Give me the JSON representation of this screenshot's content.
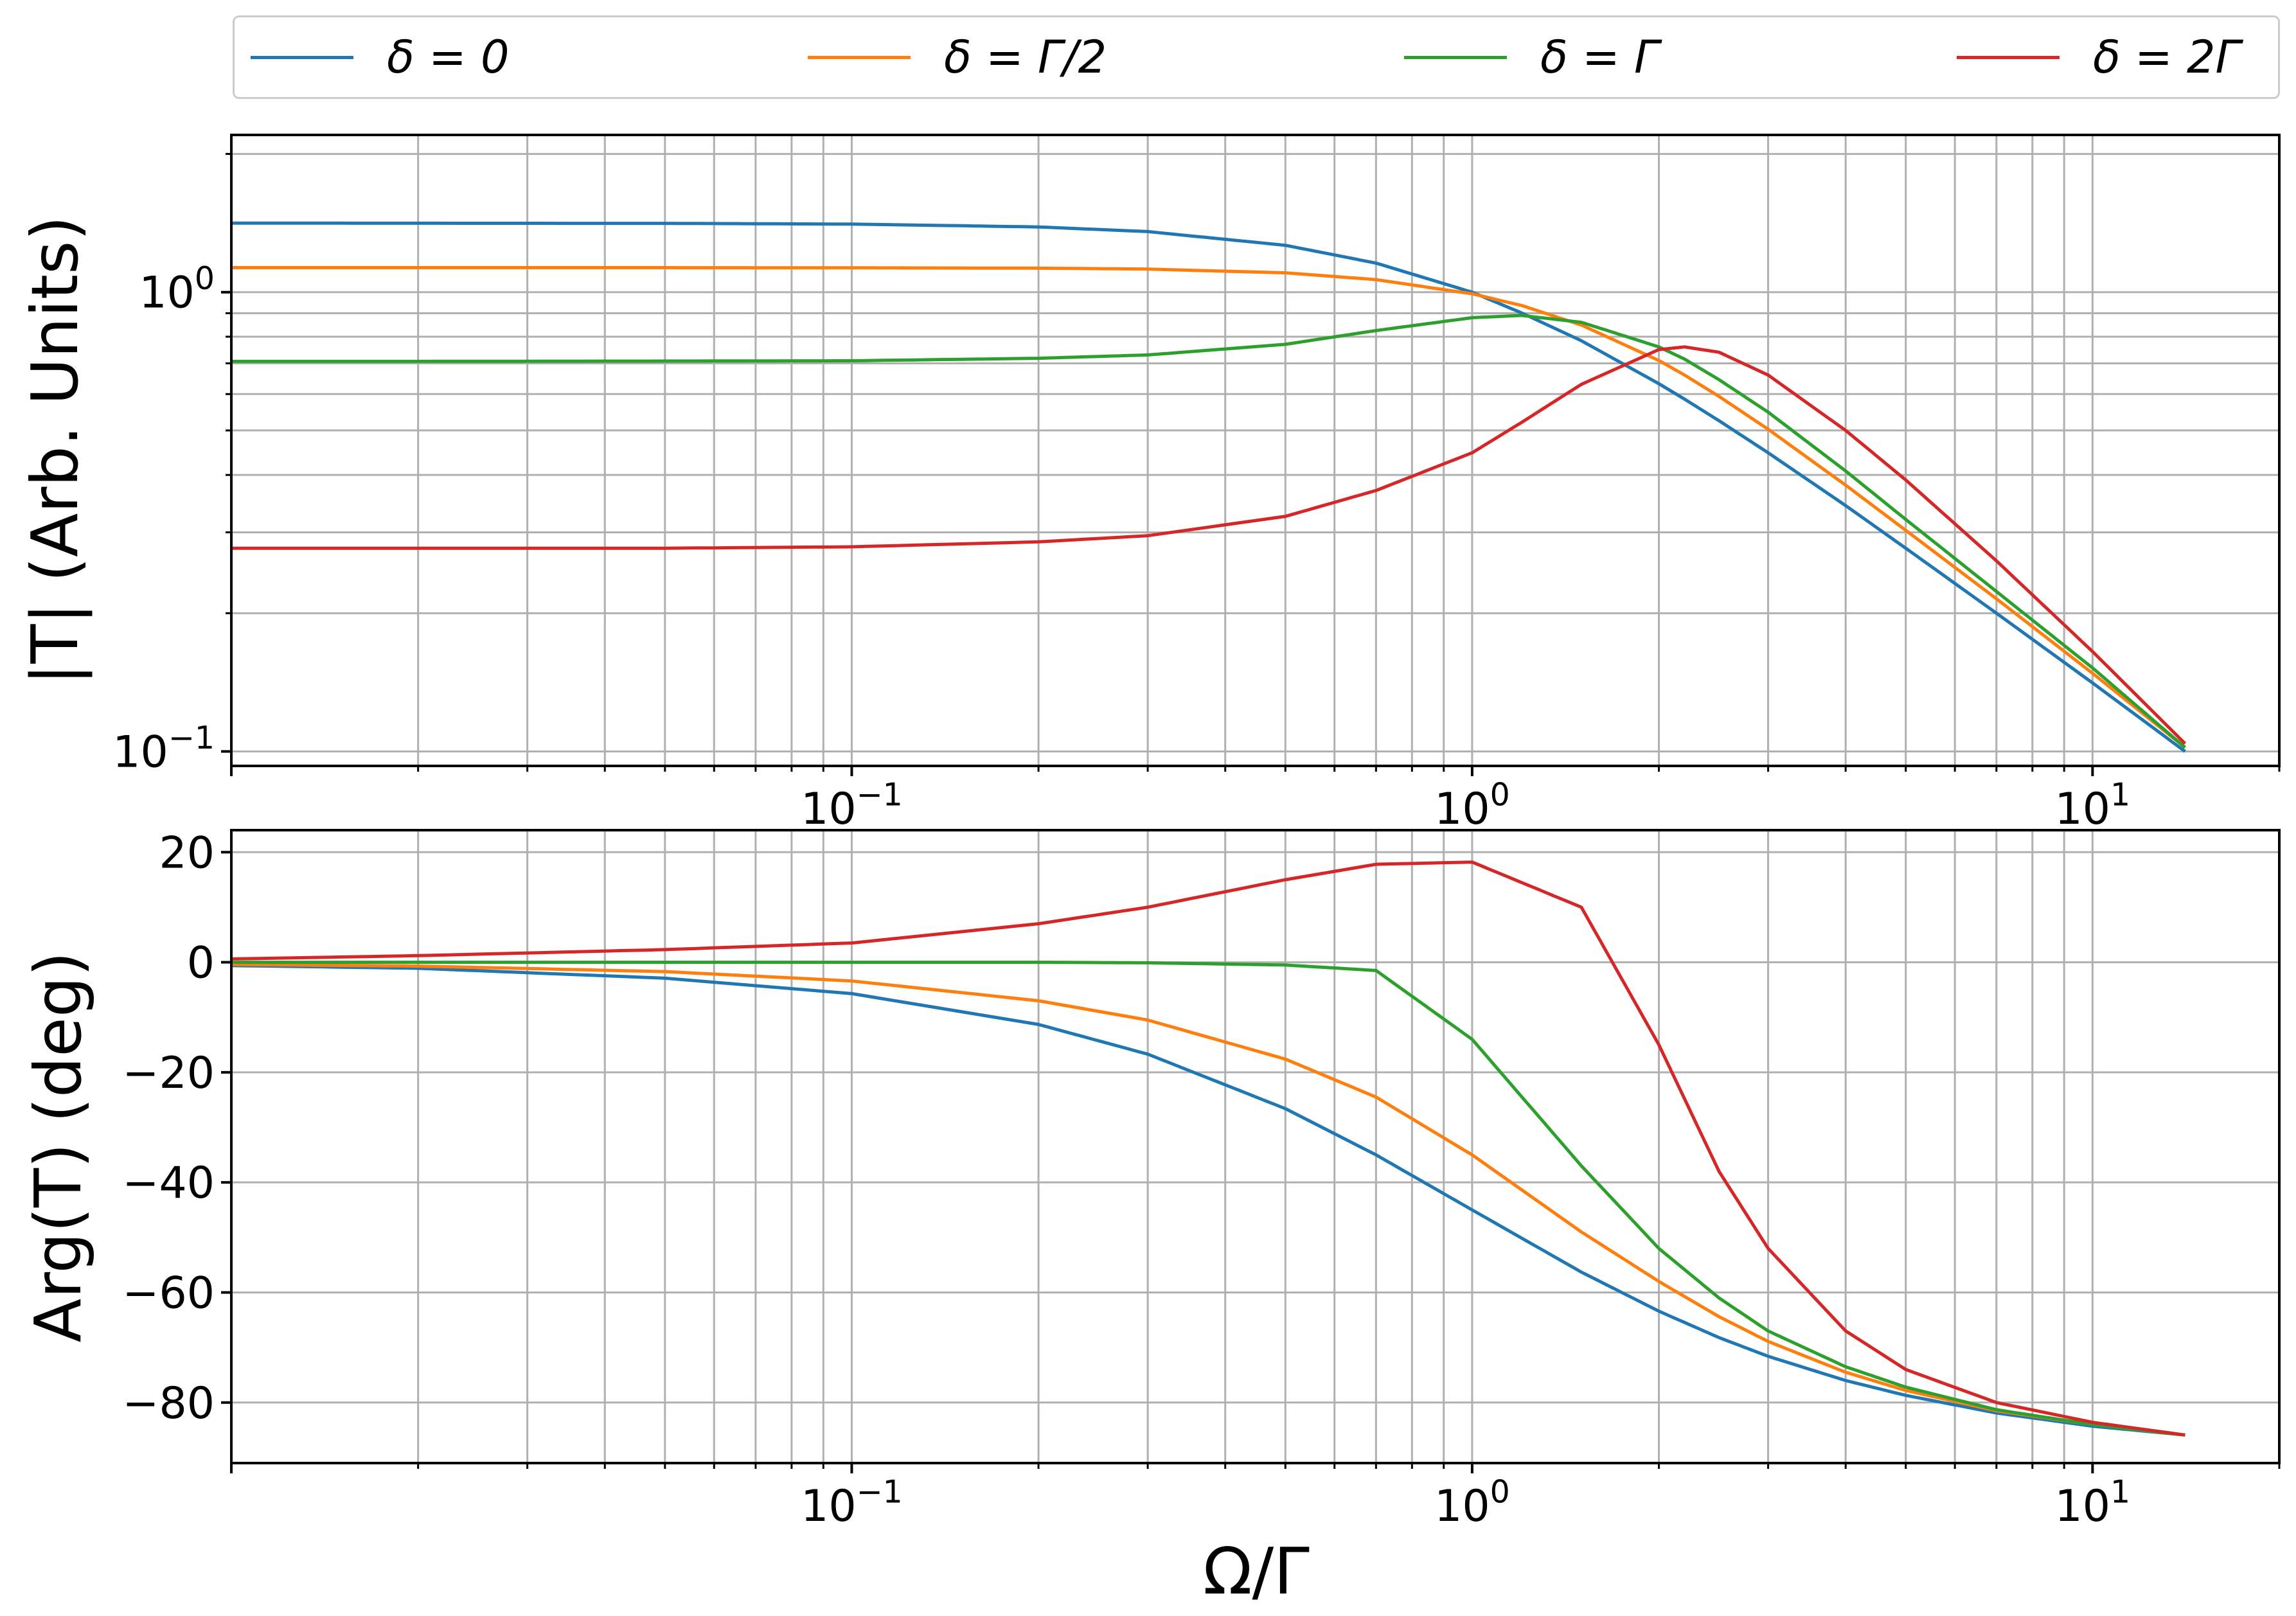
{
  "legend": {
    "placement": "top, above plots, 4 columns",
    "entries": [
      {
        "label": "δ = 0",
        "color": "#1f77b4"
      },
      {
        "label": "δ = Γ/2",
        "color": "#ff7f0e"
      },
      {
        "label": "δ = Γ",
        "color": "#2ca02c"
      },
      {
        "label": "δ = 2Γ",
        "color": "#d62728"
      }
    ]
  },
  "chart_data": [
    {
      "type": "line",
      "xscale": "log",
      "yscale": "log",
      "xlim": [
        0.01,
        20
      ],
      "ylim": [
        0.093,
        2.2
      ],
      "grid": true,
      "xlabel": "",
      "ylabel": "|T|  (Arb. Units)",
      "xticks": [
        "10^{-1}",
        "10^{0}",
        "10^{1}"
      ],
      "yticks": [
        "10^{-1}",
        "10^{0}"
      ],
      "x": [
        0.01,
        0.02,
        0.05,
        0.1,
        0.2,
        0.3,
        0.5,
        0.7,
        1.0,
        1.2,
        1.5,
        2.0,
        2.2,
        2.5,
        3.0,
        4.0,
        5.0,
        7.0,
        10.0,
        14.1
      ],
      "series": [
        {
          "name": "δ = 0",
          "color": "#1f77b4",
          "values": [
            1.414,
            1.413,
            1.412,
            1.407,
            1.387,
            1.355,
            1.265,
            1.157,
            1.0,
            0.902,
            0.784,
            0.632,
            0.585,
            0.525,
            0.447,
            0.343,
            0.277,
            0.2,
            0.141,
            0.1
          ]
        },
        {
          "name": "δ = Γ/2",
          "color": "#ff7f0e",
          "values": [
            1.131,
            1.131,
            1.131,
            1.13,
            1.128,
            1.123,
            1.102,
            1.065,
            0.992,
            0.936,
            0.848,
            0.71,
            0.66,
            0.593,
            0.503,
            0.38,
            0.303,
            0.215,
            0.148,
            0.102
          ]
        },
        {
          "name": "δ = Γ",
          "color": "#2ca02c",
          "values": [
            0.707,
            0.707,
            0.708,
            0.709,
            0.718,
            0.73,
            0.77,
            0.825,
            0.88,
            0.89,
            0.86,
            0.76,
            0.715,
            0.645,
            0.548,
            0.408,
            0.32,
            0.223,
            0.152,
            0.102
          ]
        },
        {
          "name": "δ = 2Γ",
          "color": "#d62728",
          "values": [
            0.277,
            0.277,
            0.277,
            0.279,
            0.286,
            0.295,
            0.325,
            0.37,
            0.447,
            0.52,
            0.63,
            0.75,
            0.76,
            0.74,
            0.66,
            0.5,
            0.39,
            0.26,
            0.165,
            0.104
          ]
        }
      ]
    },
    {
      "type": "line",
      "xscale": "log",
      "yscale": "linear",
      "xlim": [
        0.01,
        20
      ],
      "ylim": [
        -91,
        24
      ],
      "grid": true,
      "xlabel": "Ω/Γ",
      "ylabel": "Arg(T) (deg)",
      "xticks": [
        "10^{-1}",
        "10^{0}",
        "10^{1}"
      ],
      "yticks": [
        "−80",
        "−60",
        "−40",
        "−20",
        "0",
        "20"
      ],
      "x": [
        0.01,
        0.02,
        0.05,
        0.1,
        0.2,
        0.3,
        0.5,
        0.7,
        1.0,
        1.5,
        2.0,
        2.5,
        3.0,
        4.0,
        5.0,
        7.0,
        10.0,
        14.1
      ],
      "series": [
        {
          "name": "δ = 0",
          "color": "#1f77b4",
          "values": [
            -0.6,
            -1.1,
            -2.9,
            -5.7,
            -11.3,
            -16.7,
            -26.6,
            -35.0,
            -45.0,
            -56.3,
            -63.4,
            -68.2,
            -71.6,
            -76.0,
            -78.7,
            -81.9,
            -84.3,
            -85.9
          ]
        },
        {
          "name": "δ = Γ/2",
          "color": "#ff7f0e",
          "values": [
            -0.4,
            -0.7,
            -1.7,
            -3.4,
            -7.0,
            -10.5,
            -17.6,
            -24.5,
            -35.0,
            -49.0,
            -58.0,
            -64.4,
            -68.9,
            -74.5,
            -77.8,
            -81.5,
            -84.0,
            -85.9
          ]
        },
        {
          "name": "δ = Γ",
          "color": "#2ca02c",
          "values": [
            0.0,
            0.0,
            0.0,
            0.0,
            0.0,
            -0.1,
            -0.5,
            -1.5,
            -14.0,
            -37.0,
            -52.0,
            -61.0,
            -67.0,
            -73.5,
            -77.2,
            -81.3,
            -84.0,
            -85.9
          ]
        },
        {
          "name": "δ = 2Γ",
          "color": "#d62728",
          "values": [
            0.6,
            1.2,
            2.3,
            3.5,
            7.0,
            10.0,
            15.0,
            17.8,
            18.2,
            10.0,
            -15.0,
            -38.0,
            -52.0,
            -67.0,
            -74.0,
            -80.0,
            -83.6,
            -85.9
          ]
        }
      ]
    }
  ]
}
